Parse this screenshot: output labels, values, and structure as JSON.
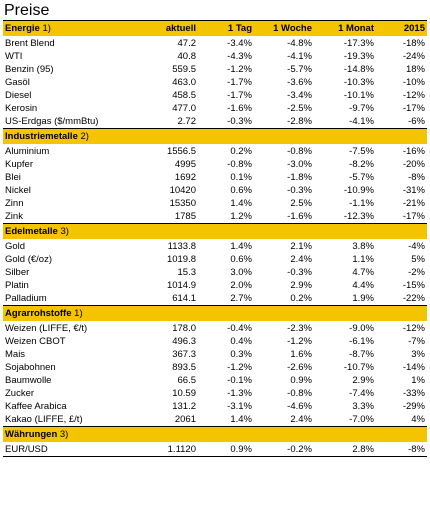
{
  "title": "Preise",
  "headers": [
    "aktuell",
    "1 Tag",
    "1 Woche",
    "1 Monat",
    "2015"
  ],
  "sections": [
    {
      "name": "Energie",
      "footnote": "1)",
      "rows": [
        {
          "name": "Brent Blend",
          "aktuell": "47.2",
          "tag": "-3.4%",
          "woche": "-4.8%",
          "monat": "-17.3%",
          "jahr": "-18%"
        },
        {
          "name": "WTI",
          "aktuell": "40.8",
          "tag": "-4.3%",
          "woche": "-4.1%",
          "monat": "-19.3%",
          "jahr": "-24%"
        },
        {
          "name": "Benzin (95)",
          "aktuell": "559.5",
          "tag": "-1.2%",
          "woche": "-5.7%",
          "monat": "-14.8%",
          "jahr": "18%"
        },
        {
          "name": "Gasöl",
          "aktuell": "463.0",
          "tag": "-1.7%",
          "woche": "-3.6%",
          "monat": "-10.3%",
          "jahr": "-10%"
        },
        {
          "name": "Diesel",
          "aktuell": "458.5",
          "tag": "-1.7%",
          "woche": "-3.4%",
          "monat": "-10.1%",
          "jahr": "-12%"
        },
        {
          "name": "Kerosin",
          "aktuell": "477.0",
          "tag": "-1.6%",
          "woche": "-2.5%",
          "monat": "-9.7%",
          "jahr": "-17%"
        },
        {
          "name": "US-Erdgas ($/mmBtu)",
          "aktuell": "2.72",
          "tag": "-0.3%",
          "woche": "-2.8%",
          "monat": "-4.1%",
          "jahr": "-6%"
        }
      ]
    },
    {
      "name": "Industriemetalle",
      "footnote": "2)",
      "rows": [
        {
          "name": "Aluminium",
          "aktuell": "1556.5",
          "tag": "0.2%",
          "woche": "-0.8%",
          "monat": "-7.5%",
          "jahr": "-16%"
        },
        {
          "name": "Kupfer",
          "aktuell": "4995",
          "tag": "-0.8%",
          "woche": "-3.0%",
          "monat": "-8.2%",
          "jahr": "-20%"
        },
        {
          "name": "Blei",
          "aktuell": "1692",
          "tag": "0.1%",
          "woche": "-1.8%",
          "monat": "-5.7%",
          "jahr": "-8%"
        },
        {
          "name": "Nickel",
          "aktuell": "10420",
          "tag": "0.6%",
          "woche": "-0.3%",
          "monat": "-10.9%",
          "jahr": "-31%"
        },
        {
          "name": "Zinn",
          "aktuell": "15350",
          "tag": "1.4%",
          "woche": "2.5%",
          "monat": "-1.1%",
          "jahr": "-21%"
        },
        {
          "name": "Zink",
          "aktuell": "1785",
          "tag": "1.2%",
          "woche": "-1.6%",
          "monat": "-12.3%",
          "jahr": "-17%"
        }
      ]
    },
    {
      "name": "Edelmetalle",
      "footnote": "3)",
      "rows": [
        {
          "name": "Gold",
          "aktuell": "1133.8",
          "tag": "1.4%",
          "woche": "2.1%",
          "monat": "3.8%",
          "jahr": "-4%"
        },
        {
          "name": "Gold (€/oz)",
          "aktuell": "1019.8",
          "tag": "0.6%",
          "woche": "2.4%",
          "monat": "1.1%",
          "jahr": "5%"
        },
        {
          "name": "Silber",
          "aktuell": "15.3",
          "tag": "3.0%",
          "woche": "-0.3%",
          "monat": "4.7%",
          "jahr": "-2%"
        },
        {
          "name": "Platin",
          "aktuell": "1014.9",
          "tag": "2.0%",
          "woche": "2.9%",
          "monat": "4.4%",
          "jahr": "-15%"
        },
        {
          "name": "Palladium",
          "aktuell": "614.1",
          "tag": "2.7%",
          "woche": "0.2%",
          "monat": "1.9%",
          "jahr": "-22%"
        }
      ]
    },
    {
      "name": "Agrarrohstoffe",
      "footnote": "1)",
      "rows": [
        {
          "name": "Weizen (LIFFE, €/t)",
          "aktuell": "178.0",
          "tag": "-0.4%",
          "woche": "-2.3%",
          "monat": "-9.0%",
          "jahr": "-12%"
        },
        {
          "name": "Weizen CBOT",
          "aktuell": "496.3",
          "tag": "0.4%",
          "woche": "-1.2%",
          "monat": "-6.1%",
          "jahr": "-7%"
        },
        {
          "name": "Mais",
          "aktuell": "367.3",
          "tag": "0.3%",
          "woche": "1.6%",
          "monat": "-8.7%",
          "jahr": "3%"
        },
        {
          "name": "Sojabohnen",
          "aktuell": "893.5",
          "tag": "-1.2%",
          "woche": "-2.6%",
          "monat": "-10.7%",
          "jahr": "-14%"
        },
        {
          "name": "Baumwolle",
          "aktuell": "66.5",
          "tag": "-0.1%",
          "woche": "0.9%",
          "monat": "2.9%",
          "jahr": "1%"
        },
        {
          "name": "Zucker",
          "aktuell": "10.59",
          "tag": "-1.3%",
          "woche": "-0.8%",
          "monat": "-7.4%",
          "jahr": "-33%"
        },
        {
          "name": "Kaffee Arabica",
          "aktuell": "131.2",
          "tag": "-3.1%",
          "woche": "-4.6%",
          "monat": "3.3%",
          "jahr": "-29%"
        },
        {
          "name": "Kakao (LIFFE, £/t)",
          "aktuell": "2061",
          "tag": "1.4%",
          "woche": "2.4%",
          "monat": "-7.0%",
          "jahr": "4%"
        }
      ]
    },
    {
      "name": "Währungen",
      "footnote": "3)",
      "rows": [
        {
          "name": "EUR/USD",
          "aktuell": "1.1120",
          "tag": "0.9%",
          "woche": "-0.2%",
          "monat": "2.8%",
          "jahr": "-8%"
        }
      ]
    }
  ]
}
